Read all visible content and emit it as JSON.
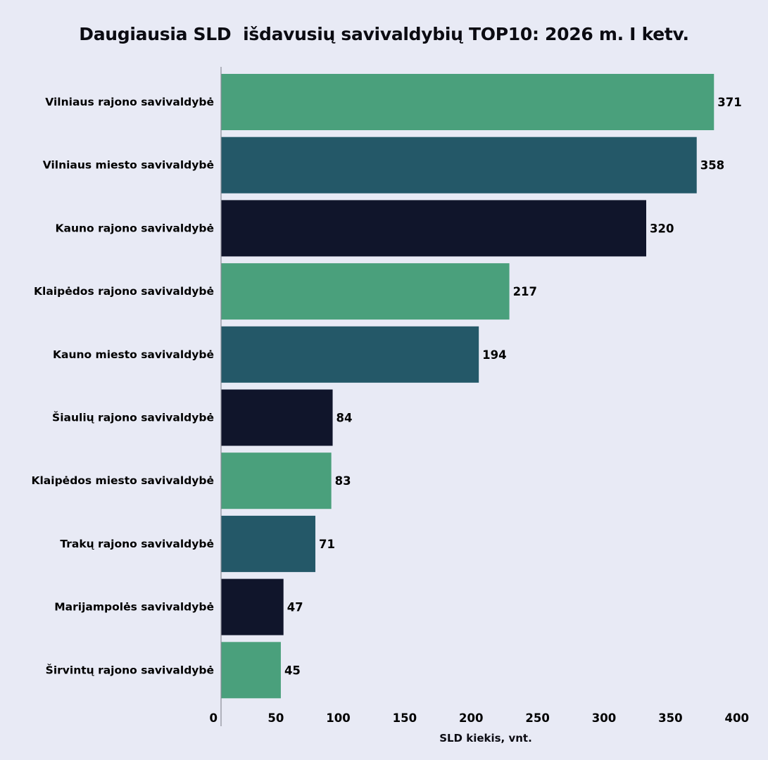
{
  "chart_data": {
    "type": "bar",
    "orientation": "horizontal",
    "title": "Daugiausia SLD  išdavusių savivaldybių TOP10: 2026 m. I ketv.",
    "xlabel": "SLD kiekis, vnt.",
    "ylabel": "",
    "categories": [
      "Vilniaus rajono savivaldybė",
      "Vilniaus miesto savivaldybė",
      "Kauno rajono savivaldybė",
      "Klaipėdos rajono savivaldybė",
      "Kauno miesto savivaldybė",
      "Šiaulių rajono savivaldybė",
      "Klaipėdos miesto savivaldybė",
      "Trakų rajono savivaldybė",
      "Marijampolės savivaldybė",
      "Širvintų rajono savivaldybė"
    ],
    "values": [
      371,
      358,
      320,
      217,
      194,
      84,
      83,
      71,
      47,
      45
    ],
    "bar_colors": [
      "#4aa07c",
      "#245868",
      "#10152b",
      "#4aa07c",
      "#245868",
      "#10152b",
      "#4aa07c",
      "#245868",
      "#10152b",
      "#4aa07c"
    ],
    "xlim": [
      0,
      400
    ],
    "xticks": [
      0,
      50,
      100,
      150,
      200,
      250,
      300,
      350,
      400
    ],
    "grid": false,
    "data_labels": true,
    "background": "#e8eaf5"
  }
}
